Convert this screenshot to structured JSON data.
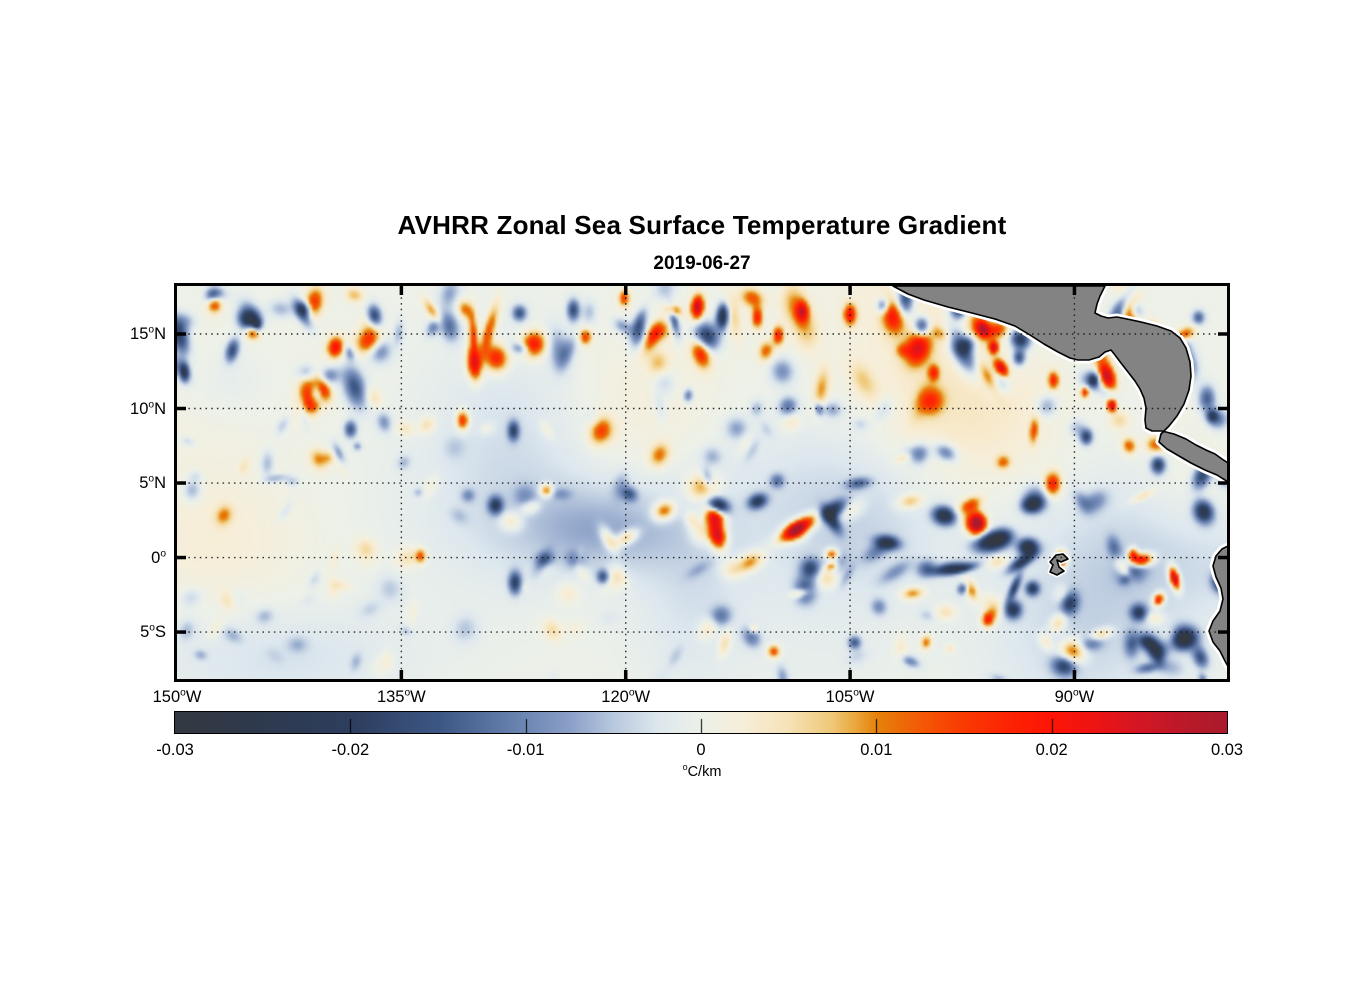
{
  "figure": {
    "title": "AVHRR Zonal Sea Surface Temperature Gradient",
    "subtitle": "2019-06-27"
  },
  "chart_data": {
    "type": "heatmap",
    "title": "AVHRR Zonal Sea Surface Temperature Gradient",
    "subtitle": "2019-06-27",
    "x_axis": {
      "label": "",
      "range": [
        -150,
        -79.8
      ],
      "ticks": [
        {
          "value": -150,
          "label": "150°W"
        },
        {
          "value": -135,
          "label": "135°W"
        },
        {
          "value": -120,
          "label": "120°W"
        },
        {
          "value": -105,
          "label": "105°W"
        },
        {
          "value": -90,
          "label": "90°W"
        }
      ]
    },
    "y_axis": {
      "label": "",
      "range": [
        -8.15,
        18.22
      ],
      "ticks": [
        {
          "value": 15,
          "label": "15°N"
        },
        {
          "value": 10,
          "label": "10°N"
        },
        {
          "value": 5,
          "label": "5°N"
        },
        {
          "value": 0,
          "label": "0°"
        },
        {
          "value": -5,
          "label": "5°S"
        }
      ]
    },
    "grid": {
      "on": true,
      "style": "dotted",
      "color": "#141414"
    },
    "colorbar": {
      "unit_label": "°C/km",
      "range": [
        -0.03,
        0.03
      ],
      "ticks": [
        {
          "value": -0.03,
          "label": "-0.03"
        },
        {
          "value": -0.02,
          "label": "-0.02"
        },
        {
          "value": -0.01,
          "label": "-0.01"
        },
        {
          "value": 0,
          "label": "0"
        },
        {
          "value": 0.01,
          "label": "0.01"
        },
        {
          "value": 0.02,
          "label": "0.02"
        },
        {
          "value": 0.03,
          "label": "0.03"
        }
      ],
      "stops": [
        {
          "p": 0.0,
          "c": "#343940"
        },
        {
          "p": 0.083,
          "c": "#2f3a4f"
        },
        {
          "p": 0.167,
          "c": "#2d3e5e"
        },
        {
          "p": 0.25,
          "c": "#3d5784"
        },
        {
          "p": 0.333,
          "c": "#6e87b4"
        },
        {
          "p": 0.375,
          "c": "#8ba0c8"
        },
        {
          "p": 0.417,
          "c": "#b9c9de"
        },
        {
          "p": 0.458,
          "c": "#dde7ee"
        },
        {
          "p": 0.5,
          "c": "#edf1e9"
        },
        {
          "p": 0.542,
          "c": "#f7eed8"
        },
        {
          "p": 0.583,
          "c": "#f6e3b8"
        },
        {
          "p": 0.625,
          "c": "#f0c878"
        },
        {
          "p": 0.646,
          "c": "#eaa93f"
        },
        {
          "p": 0.667,
          "c": "#e6830c"
        },
        {
          "p": 0.708,
          "c": "#f35b06"
        },
        {
          "p": 0.75,
          "c": "#fa3a03"
        },
        {
          "p": 0.792,
          "c": "#fd2404"
        },
        {
          "p": 0.833,
          "c": "#fe1506"
        },
        {
          "p": 0.875,
          "c": "#ee1414"
        },
        {
          "p": 0.917,
          "c": "#d41724"
        },
        {
          "p": 0.958,
          "c": "#bc1929"
        },
        {
          "p": 1.0,
          "c": "#aa1b2d"
        }
      ]
    },
    "land": {
      "fill": "#838383",
      "outline": "#000000",
      "fringe": "#ffffff",
      "polygons": {
        "central_america": [
          [
            716,
            0
          ],
          [
            731,
            8
          ],
          [
            747,
            14
          ],
          [
            771,
            21
          ],
          [
            795,
            27
          ],
          [
            818,
            33
          ],
          [
            838,
            40
          ],
          [
            853,
            49
          ],
          [
            867,
            58
          ],
          [
            881,
            66
          ],
          [
            893,
            72
          ],
          [
            901,
            74
          ],
          [
            912,
            74
          ],
          [
            922,
            71
          ],
          [
            928,
            66
          ],
          [
            934,
            64
          ],
          [
            938,
            69
          ],
          [
            944,
            77
          ],
          [
            951,
            86
          ],
          [
            958,
            95
          ],
          [
            963,
            103
          ],
          [
            967,
            112
          ],
          [
            969,
            122
          ],
          [
            968,
            134
          ],
          [
            969,
            142
          ],
          [
            975,
            145
          ],
          [
            985,
            145
          ],
          [
            997,
            148
          ],
          [
            1009,
            153
          ],
          [
            1019,
            159
          ],
          [
            1029,
            164
          ],
          [
            1038,
            168
          ],
          [
            1045,
            173
          ],
          [
            1051,
            177
          ],
          [
            1051,
            196
          ],
          [
            1040,
            189
          ],
          [
            1028,
            184
          ],
          [
            1014,
            177
          ],
          [
            1002,
            170
          ],
          [
            990,
            163
          ],
          [
            982,
            156
          ],
          [
            984,
            148
          ],
          [
            992,
            140
          ],
          [
            1000,
            130
          ],
          [
            1007,
            118
          ],
          [
            1012,
            104
          ],
          [
            1014,
            90
          ],
          [
            1013,
            76
          ],
          [
            1009,
            62
          ],
          [
            1003,
            52
          ],
          [
            994,
            45
          ],
          [
            980,
            40
          ],
          [
            964,
            36
          ],
          [
            950,
            33
          ],
          [
            940,
            31
          ],
          [
            931,
            32
          ],
          [
            924,
            30
          ],
          [
            918,
            27
          ],
          [
            920,
            18
          ],
          [
            923,
            10
          ],
          [
            926,
            4
          ],
          [
            928,
            0
          ]
        ],
        "south_america": [
          [
            1053,
            259
          ],
          [
            1045,
            263
          ],
          [
            1039,
            270
          ],
          [
            1036,
            280
          ],
          [
            1039,
            291
          ],
          [
            1044,
            302
          ],
          [
            1046,
            313
          ],
          [
            1043,
            325
          ],
          [
            1036,
            335
          ],
          [
            1032,
            345
          ],
          [
            1036,
            356
          ],
          [
            1043,
            365
          ],
          [
            1048,
            375
          ],
          [
            1053,
            384
          ]
        ],
        "galapagos": [
          [
            873,
            276
          ],
          [
            879,
            269
          ],
          [
            886,
            268
          ],
          [
            891,
            273
          ],
          [
            884,
            276
          ],
          [
            880,
            274
          ],
          [
            882,
            281
          ],
          [
            887,
            285
          ],
          [
            880,
            289
          ],
          [
            873,
            286
          ],
          [
            876,
            279
          ]
        ]
      }
    },
    "field": {
      "units": "°C/km",
      "color_limit": 0.03,
      "seed": 20190627,
      "large_scale_blobs": 34,
      "noise_blobs": 330,
      "features_format": "[lon_degE, lat_degN, amplitude_fraction_of_limit, rx_px, ry_px, angle_deg]",
      "features": [
        [
          -147.6,
          17.2,
          0.6,
          9,
          12,
          0
        ],
        [
          -146.4,
          14.0,
          -0.55,
          8,
          15,
          15
        ],
        [
          -145.0,
          15.2,
          0.55,
          9,
          9,
          0
        ],
        [
          -141.6,
          16.8,
          -0.45,
          9,
          9,
          0
        ],
        [
          -139.5,
          14.2,
          0.7,
          10,
          13,
          10
        ],
        [
          -136.9,
          16.3,
          -0.6,
          9,
          14,
          -10
        ],
        [
          -138.5,
          8.7,
          -0.5,
          8,
          11,
          0
        ],
        [
          -131.0,
          9.3,
          0.6,
          8,
          12,
          0
        ],
        [
          -127.6,
          8.6,
          -0.55,
          7,
          12,
          0
        ],
        [
          -127.2,
          16.5,
          -0.5,
          9,
          10,
          0
        ],
        [
          -123.6,
          16.7,
          -0.55,
          8,
          14,
          0
        ],
        [
          -122.8,
          14.9,
          0.5,
          8,
          10,
          0
        ],
        [
          -120.2,
          17.5,
          0.5,
          7,
          10,
          0
        ],
        [
          -115.3,
          16.9,
          0.9,
          8,
          15,
          5
        ],
        [
          -113.6,
          16.3,
          -0.85,
          8,
          16,
          5
        ],
        [
          -111.3,
          16.2,
          0.6,
          7,
          13,
          0
        ],
        [
          -109.9,
          15.0,
          0.6,
          7,
          12,
          0
        ],
        [
          -108.3,
          16.6,
          0.65,
          8,
          13,
          0
        ],
        [
          -105.1,
          16.4,
          0.65,
          8,
          13,
          0
        ],
        [
          -102.9,
          17.0,
          -0.5,
          8,
          10,
          0
        ],
        [
          -100.3,
          15.6,
          -0.6,
          10,
          12,
          0
        ],
        [
          -97.8,
          16.8,
          -0.7,
          11,
          13,
          20
        ],
        [
          -96.2,
          15.4,
          0.75,
          9,
          12,
          -30
        ],
        [
          -95.5,
          14.2,
          0.8,
          6,
          8,
          0
        ],
        [
          -99.5,
          12.5,
          0.5,
          7,
          10,
          0
        ],
        [
          -93.8,
          13.5,
          -0.55,
          8,
          10,
          0
        ],
        [
          -91.5,
          12.0,
          0.55,
          7,
          11,
          0
        ],
        [
          -88.8,
          12.0,
          -0.55,
          7,
          9,
          0
        ],
        [
          -89.4,
          11.2,
          0.6,
          5,
          7,
          0
        ],
        [
          -87.6,
          10.3,
          0.85,
          6,
          8,
          0
        ],
        [
          -89.3,
          8.2,
          -0.6,
          8,
          10,
          0
        ],
        [
          -84.5,
          6.3,
          -0.65,
          9,
          11,
          0
        ],
        [
          -81.8,
          16.2,
          -0.45,
          8,
          9,
          0
        ],
        [
          -80.9,
          9.6,
          -0.5,
          7,
          8,
          0
        ],
        [
          -128.8,
          3.6,
          -0.6,
          9,
          11,
          0
        ],
        [
          -125.4,
          4.6,
          0.5,
          8,
          8,
          0
        ],
        [
          -133.8,
          0.2,
          0.45,
          7,
          9,
          0
        ],
        [
          -127.5,
          -1.6,
          -0.6,
          8,
          14,
          0
        ],
        [
          -121.6,
          -1.2,
          -0.5,
          8,
          9,
          0
        ],
        [
          -113.9,
          3.6,
          -0.75,
          13,
          9,
          20
        ],
        [
          -108.7,
          2.0,
          0.95,
          24,
          9,
          -33
        ],
        [
          -106.3,
          0.3,
          0.6,
          8,
          7,
          0
        ],
        [
          -102.6,
          1.1,
          -0.7,
          15,
          8,
          10
        ],
        [
          -98.8,
          2.9,
          -0.85,
          14,
          11,
          15
        ],
        [
          -96.5,
          2.5,
          0.9,
          10,
          13,
          -20
        ],
        [
          -93.2,
          0.8,
          -0.9,
          12,
          10,
          0
        ],
        [
          -91.0,
          0.0,
          0.85,
          7,
          10,
          0
        ],
        [
          -94.2,
          -3.4,
          -0.7,
          10,
          11,
          0
        ],
        [
          -95.9,
          -4.1,
          0.55,
          8,
          9,
          0
        ],
        [
          -86.2,
          0.3,
          0.7,
          6,
          8,
          0
        ],
        [
          -83.4,
          -1.3,
          1.0,
          6,
          14,
          -15
        ],
        [
          -82.8,
          -5.3,
          -0.9,
          17,
          14,
          0
        ],
        [
          -85.8,
          -3.6,
          -0.6,
          10,
          10,
          0
        ],
        [
          -149.6,
          12.5,
          -0.5,
          6,
          12,
          0
        ],
        [
          -110.2,
          -6.2,
          0.5,
          8,
          8,
          0
        ],
        [
          -104.8,
          -5.6,
          -0.45,
          8,
          8,
          0
        ]
      ]
    }
  }
}
